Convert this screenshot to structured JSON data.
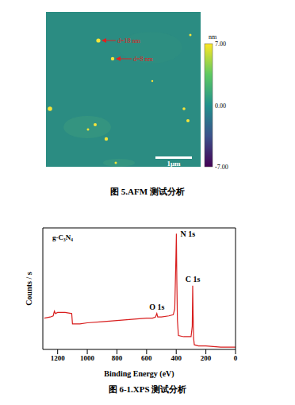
{
  "afm_figure": {
    "annotations": [
      "d=18 nm",
      "d=8 nm"
    ],
    "colorbar": {
      "unit": "nm",
      "range": [
        -7,
        7
      ],
      "ticks": [
        {
          "value": 7,
          "label": "7.00"
        },
        {
          "value": 0,
          "label": "0.00"
        },
        {
          "value": -7,
          "label": "-7.00"
        }
      ]
    },
    "scale_bar": "1μm",
    "caption": "图 5.AFM 测试分析"
  },
  "chart_data": {
    "type": "line",
    "caption": "图 6-1.XPS 测试分析",
    "title": "g-C₃N₄",
    "xlabel": "Binding Energy (eV)",
    "ylabel": "Counts / s",
    "color": "#d81e1e",
    "x": [
      1290,
      1250,
      1230,
      1222,
      1215,
      1200,
      1150,
      1105,
      1100,
      1050,
      1000,
      900,
      800,
      700,
      600,
      560,
      540,
      531,
      525,
      500,
      450,
      420,
      410,
      402,
      399,
      396,
      392,
      385,
      350,
      300,
      292,
      289,
      286,
      283,
      278,
      250,
      200,
      100,
      0
    ],
    "values": [
      27,
      28,
      29,
      33,
      31,
      32,
      32,
      31,
      22,
      22,
      23,
      24,
      25,
      26,
      27,
      27,
      28,
      31,
      28,
      28,
      29,
      30,
      35,
      80,
      100,
      60,
      25,
      12,
      11,
      11,
      20,
      55,
      30,
      10,
      4,
      3,
      3,
      2,
      2
    ],
    "peaks": [
      {
        "label": "N 1s",
        "x": 399
      },
      {
        "label": "C 1s",
        "x": 289
      },
      {
        "label": "O 1s",
        "x": 531
      }
    ],
    "xlim": [
      1300,
      0
    ],
    "xticks": [
      1200,
      1000,
      800,
      600,
      400,
      200,
      0
    ],
    "ylim": [
      0,
      105
    ],
    "tick_labels": "x"
  }
}
